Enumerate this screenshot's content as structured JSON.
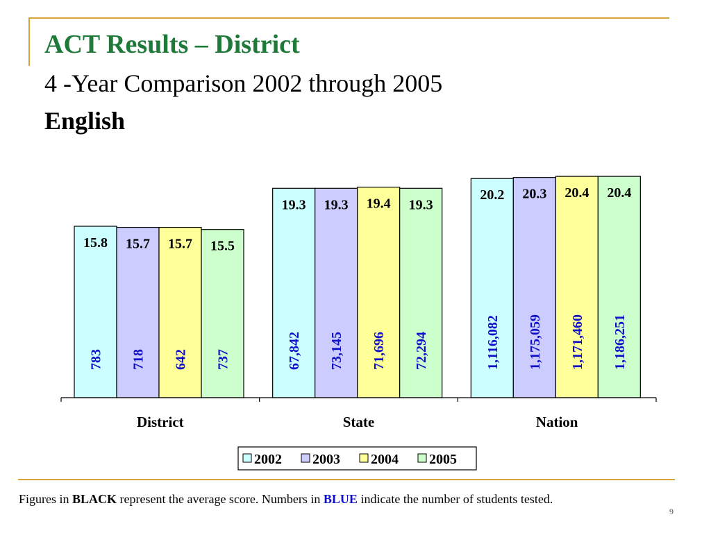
{
  "slide": {
    "title": "ACT Results – District",
    "subtitle": "4 -Year Comparison 2002 through 2005",
    "subject": "English",
    "footnote": {
      "part1": "Figures in ",
      "black_word": "BLACK",
      "part2": " represent the average score.  Numbers in ",
      "blue_word": "BLUE",
      "part3": " indicate the number of students tested."
    },
    "page_number": "9"
  },
  "chart_data": {
    "type": "bar",
    "categories": [
      "District",
      "State",
      "Nation"
    ],
    "series": [
      {
        "name": "2002",
        "color": "#ccffff",
        "values": [
          15.8,
          19.3,
          20.2
        ],
        "value_labels": [
          "15.8",
          "19.3",
          "20.2"
        ],
        "counts": [
          "783",
          "67,842",
          "1,116,082"
        ]
      },
      {
        "name": "2003",
        "color": "#ccccff",
        "values": [
          15.7,
          19.3,
          20.3
        ],
        "value_labels": [
          "15.7",
          "19.3",
          "20.3"
        ],
        "counts": [
          "718",
          "73,145",
          "1,175,059"
        ]
      },
      {
        "name": "2004",
        "color": "#ffff99",
        "values": [
          15.7,
          19.4,
          20.4
        ],
        "value_labels": [
          "15.7",
          "19.4",
          "20.4"
        ],
        "counts": [
          "642",
          "71,696",
          "1,171,460"
        ]
      },
      {
        "name": "2005",
        "color": "#ccffcc",
        "values": [
          15.5,
          19.3,
          20.4
        ],
        "value_labels": [
          "15.5",
          "19.3",
          "20.4"
        ],
        "counts": [
          "737",
          "72,294",
          "1,186,251"
        ]
      }
    ],
    "ylim": [
      0,
      24.5
    ],
    "grid": false,
    "legend_position": "bottom",
    "score_label_color": "#000000",
    "count_label_color": "#1010c8"
  }
}
